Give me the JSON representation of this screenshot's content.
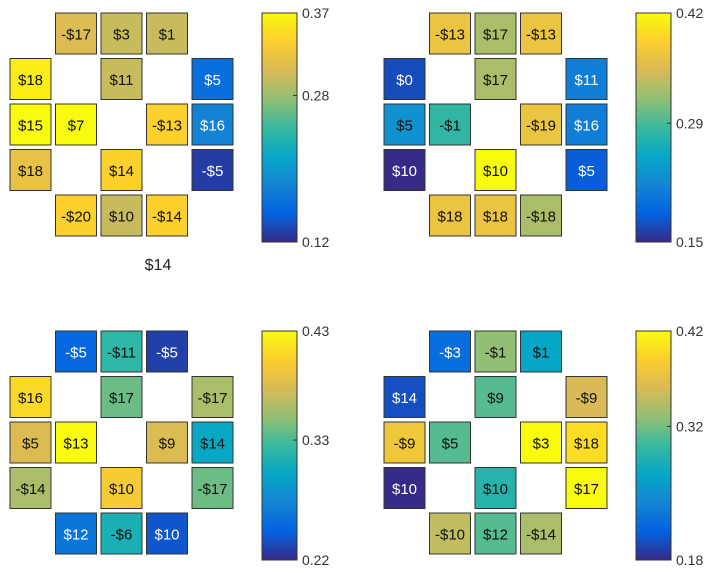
{
  "caption": "$14",
  "chart_data": [
    {
      "type": "heatmap",
      "panel": "top-left",
      "grid": [
        [
          null,
          "-$17",
          "$3",
          "$1",
          null
        ],
        [
          "$18",
          null,
          "$11",
          null,
          "$5"
        ],
        [
          "$15",
          "$7",
          null,
          "-$13",
          "$16"
        ],
        [
          "$18",
          null,
          "$14",
          null,
          "-$5"
        ],
        [
          null,
          "-$20",
          "$10",
          "-$14",
          null
        ]
      ],
      "intensity": [
        [
          null,
          0.31,
          0.3,
          0.3,
          null
        ],
        [
          0.36,
          null,
          0.3,
          null,
          0.16
        ],
        [
          0.37,
          0.37,
          null,
          0.34,
          0.18
        ],
        [
          0.32,
          null,
          0.34,
          null,
          0.13
        ],
        [
          null,
          0.34,
          0.3,
          0.34,
          null
        ]
      ],
      "colorbar": {
        "min": 0.12,
        "max": 0.37,
        "ticks": [
          "0.12",
          "0.28",
          "0.37"
        ],
        "tick_values": [
          0.12,
          0.28,
          0.37
        ]
      }
    },
    {
      "type": "heatmap",
      "panel": "top-right",
      "grid": [
        [
          null,
          "-$13",
          "$17",
          "-$13",
          null
        ],
        [
          "$0",
          null,
          "$17",
          null,
          "$11"
        ],
        [
          "$5",
          "-$1",
          null,
          "-$19",
          "$16"
        ],
        [
          "$10",
          null,
          "$10",
          null,
          "$5"
        ],
        [
          null,
          "$18",
          "$18",
          "-$18",
          null
        ]
      ],
      "intensity": [
        [
          null,
          0.37,
          0.33,
          0.37,
          null
        ],
        [
          0.17,
          null,
          0.33,
          null,
          0.21
        ],
        [
          0.23,
          0.28,
          null,
          0.37,
          0.21
        ],
        [
          0.15,
          null,
          0.42,
          null,
          0.18
        ],
        [
          null,
          0.37,
          0.37,
          0.33,
          null
        ]
      ],
      "colorbar": {
        "min": 0.15,
        "max": 0.42,
        "ticks": [
          "0.15",
          "0.29",
          "0.42"
        ],
        "tick_values": [
          0.15,
          0.29,
          0.42
        ]
      }
    },
    {
      "type": "heatmap",
      "panel": "bottom-left",
      "grid": [
        [
          null,
          "-$5",
          "-$11",
          "-$5",
          null
        ],
        [
          "$16",
          null,
          "$17",
          null,
          "-$17"
        ],
        [
          "$5",
          "$13",
          null,
          "$9",
          "$14"
        ],
        [
          "-$14",
          null,
          "$10",
          null,
          "-$17"
        ],
        [
          null,
          "$12",
          "-$6",
          "$10",
          null
        ]
      ],
      "intensity": [
        [
          null,
          0.25,
          0.32,
          0.23,
          null
        ],
        [
          0.41,
          null,
          0.34,
          null,
          0.36
        ],
        [
          0.38,
          0.43,
          null,
          0.38,
          0.3
        ],
        [
          0.36,
          null,
          0.4,
          null,
          0.34
        ],
        [
          null,
          0.26,
          0.31,
          0.24,
          null
        ]
      ],
      "colorbar": {
        "min": 0.22,
        "max": 0.43,
        "ticks": [
          "0.22",
          "0.33",
          "0.43"
        ],
        "tick_values": [
          0.22,
          0.33,
          0.43
        ]
      }
    },
    {
      "type": "heatmap",
      "panel": "bottom-right",
      "grid": [
        [
          null,
          "-$3",
          "-$1",
          "$1",
          null
        ],
        [
          "$14",
          null,
          "$9",
          null,
          "-$9"
        ],
        [
          "-$9",
          "$5",
          null,
          "$3",
          "$18"
        ],
        [
          "$10",
          null,
          "$10",
          null,
          "$17"
        ],
        [
          null,
          "-$10",
          "$12",
          "-$14",
          null
        ]
      ],
      "intensity": [
        [
          null,
          0.22,
          0.33,
          0.27,
          null
        ],
        [
          0.2,
          null,
          0.31,
          null,
          0.36
        ],
        [
          0.38,
          0.31,
          null,
          0.42,
          0.4
        ],
        [
          0.18,
          null,
          0.29,
          null,
          0.42
        ],
        [
          null,
          0.35,
          0.31,
          0.34,
          null
        ]
      ],
      "colorbar": {
        "min": 0.18,
        "max": 0.42,
        "ticks": [
          "0.18",
          "0.32",
          "0.42"
        ],
        "tick_values": [
          0.18,
          0.32,
          0.42
        ]
      }
    }
  ]
}
